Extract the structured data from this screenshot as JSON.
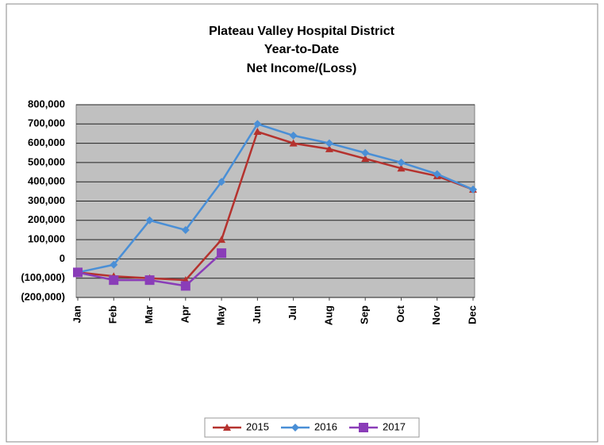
{
  "chart_data": {
    "type": "line",
    "title": [
      "Plateau Valley Hospital District",
      "Year-to-Date",
      "Net Income/(Loss)"
    ],
    "categories": [
      "Jan",
      "Feb",
      "Mar",
      "Apr",
      "May",
      "Jun",
      "Jul",
      "Aug",
      "Sep",
      "Oct",
      "Nov",
      "Dec"
    ],
    "series": [
      {
        "name": "2015",
        "color": "#b5322e",
        "marker": "triangle",
        "values": [
          -70000,
          -90000,
          -100000,
          -110000,
          100000,
          660000,
          600000,
          570000,
          520000,
          470000,
          430000,
          360000
        ]
      },
      {
        "name": "2016",
        "color": "#4a8fd6",
        "marker": "diamond",
        "values": [
          -70000,
          -30000,
          200000,
          150000,
          400000,
          700000,
          640000,
          600000,
          550000,
          500000,
          440000,
          360000
        ]
      },
      {
        "name": "2017",
        "color": "#8a3db8",
        "marker": "square",
        "values": [
          -70000,
          -110000,
          -110000,
          -140000,
          30000,
          null,
          null,
          null,
          null,
          null,
          null,
          null
        ]
      }
    ],
    "ylim": [
      -200000,
      800000
    ],
    "yticks": [
      {
        "value": -200000,
        "label": "(200,000)"
      },
      {
        "value": -100000,
        "label": "(100,000)"
      },
      0,
      {
        "value": 100000,
        "label": "100,000"
      },
      {
        "value": 200000,
        "label": "200,000"
      },
      {
        "value": 300000,
        "label": "300,000"
      },
      {
        "value": 400000,
        "label": "400,000"
      },
      {
        "value": 500000,
        "label": "500,000"
      },
      {
        "value": 600000,
        "label": "600,000"
      },
      {
        "value": 700000,
        "label": "700,000"
      },
      {
        "value": 800000,
        "label": "800,000"
      }
    ],
    "grid": true,
    "legend": "bottom"
  }
}
